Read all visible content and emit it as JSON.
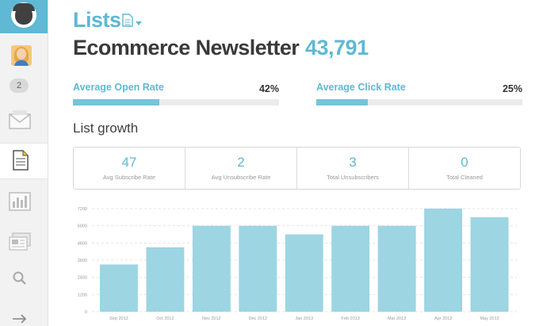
{
  "sidebar": {
    "badge_count": "2",
    "icons": [
      "chimp-logo-icon",
      "user-avatar",
      "campaigns-envelope-icon",
      "lists-document-icon",
      "reports-chart-icon",
      "templates-stack-icon",
      "search-icon",
      "collapse-arrow-icon"
    ]
  },
  "header": {
    "section": "Lists",
    "list_name": "Ecommerce Newsletter",
    "subscriber_count": "43,791"
  },
  "rates": {
    "open": {
      "label": "Average Open Rate",
      "value": "42%",
      "fraction": 0.42
    },
    "click": {
      "label": "Average Click Rate",
      "value": "25%",
      "fraction": 0.25
    }
  },
  "growth": {
    "title": "List growth",
    "stats": [
      {
        "value": "47",
        "label": "Avg Subscribe Rate"
      },
      {
        "value": "2",
        "label": "Avg Unsubscribe Rate"
      },
      {
        "value": "3",
        "label": "Total Unsubscribers"
      },
      {
        "value": "0",
        "label": "Total Cleaned"
      }
    ]
  },
  "colors": {
    "accent": "#5fb8d4",
    "bar": "#9dd5e3",
    "text": "#3a3a3a"
  },
  "chart_data": {
    "type": "bar",
    "categories": [
      "Sep 2012",
      "Oct 2012",
      "Nov 2012",
      "Dec 2012",
      "Jan 2013",
      "Feb 2013",
      "Mar 2013",
      "Apr 2013",
      "May 2013"
    ],
    "values": [
      3300,
      4500,
      6000,
      6000,
      5400,
      6000,
      6000,
      7200,
      6600
    ],
    "ylim": [
      0,
      7200
    ],
    "yticks": [
      0,
      1200,
      2400,
      3600,
      4800,
      6000,
      7200
    ],
    "title": "",
    "xlabel": "",
    "ylabel": "",
    "grid": true
  }
}
